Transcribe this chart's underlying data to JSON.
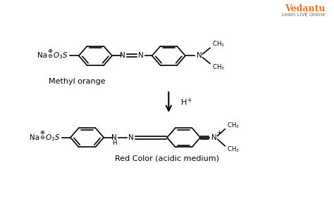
{
  "bg_color": "#ffffff",
  "text_color": "#000000",
  "figsize": [
    4.74,
    3.16
  ],
  "dpi": 100,
  "title1": "Methyl orange",
  "title2": "Red Color (acidic medium)",
  "vedantu_orange": "#E8742A",
  "vedantu_text": "Vedantu",
  "vedantu_sub": "Learn LIVE Online"
}
